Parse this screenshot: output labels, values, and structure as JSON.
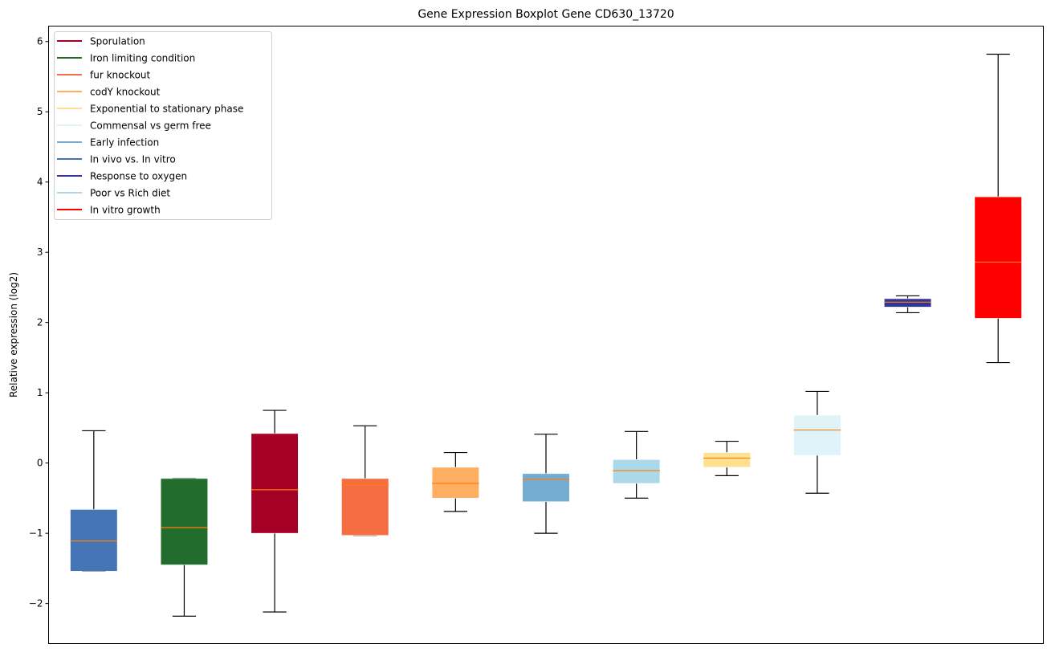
{
  "chart_data": {
    "type": "boxplot",
    "title": "Gene Expression Boxplot Gene CD630_13720",
    "xlabel": "",
    "ylabel": "Relative expression (log2)",
    "ylim": [
      -2.57,
      6.22
    ],
    "yticks": [
      -2,
      -1,
      0,
      1,
      2,
      3,
      4,
      5,
      6
    ],
    "ytick_labels": [
      "−2",
      "−1",
      "0",
      "1",
      "2",
      "3",
      "4",
      "5",
      "6"
    ],
    "grid": false,
    "legend_position": "top-left",
    "median_color": "#ff7f0e",
    "whisker_color": "#000000",
    "boxes": [
      {
        "name": "In vivo vs. In vitro",
        "color": "#4575b4",
        "whislo": -1.54,
        "q1": -1.54,
        "med": -1.11,
        "q3": -0.66,
        "whishi": 0.46
      },
      {
        "name": "Iron limiting condition",
        "color": "#226c2e",
        "whislo": -2.18,
        "q1": -1.45,
        "med": -0.92,
        "q3": -0.22,
        "whishi": -0.22
      },
      {
        "name": "Sporulation",
        "color": "#a50026",
        "whislo": -2.12,
        "q1": -1.0,
        "med": -0.38,
        "q3": 0.42,
        "whishi": 0.75
      },
      {
        "name": "fur knockout",
        "color": "#f46d43",
        "whislo": -1.03,
        "q1": -1.03,
        "med": -0.31,
        "q3": -0.22,
        "whishi": 0.53
      },
      {
        "name": "codY knockout",
        "color": "#fdae61",
        "whislo": -0.69,
        "q1": -0.5,
        "med": -0.29,
        "q3": -0.06,
        "whishi": 0.15
      },
      {
        "name": "Early infection",
        "color": "#74add1",
        "whislo": -1.0,
        "q1": -0.55,
        "med": -0.23,
        "q3": -0.15,
        "whishi": 0.41
      },
      {
        "name": "Poor vs Rich diet",
        "color": "#abd9e9",
        "whislo": -0.5,
        "q1": -0.29,
        "med": -0.11,
        "q3": 0.05,
        "whishi": 0.45
      },
      {
        "name": "Exponential to stationary phase",
        "color": "#fee090",
        "whislo": -0.18,
        "q1": -0.06,
        "med": 0.07,
        "q3": 0.15,
        "whishi": 0.31
      },
      {
        "name": "Commensal vs germ free",
        "color": "#e0f3f8",
        "whislo": -0.43,
        "q1": 0.11,
        "med": 0.47,
        "q3": 0.68,
        "whishi": 1.02
      },
      {
        "name": "Response to oxygen",
        "color": "#313695",
        "whislo": 2.14,
        "q1": 2.22,
        "med": 2.29,
        "q3": 2.34,
        "whishi": 2.38
      },
      {
        "name": "In vitro growth",
        "color": "#ff0000",
        "whislo": 1.43,
        "q1": 2.06,
        "med": 2.86,
        "q3": 3.79,
        "whishi": 5.82
      }
    ],
    "legend": [
      {
        "label": "Sporulation",
        "color": "#a50026"
      },
      {
        "label": "Iron limiting condition",
        "color": "#226c2e"
      },
      {
        "label": "fur knockout",
        "color": "#f46d43"
      },
      {
        "label": "codY knockout",
        "color": "#fdae61"
      },
      {
        "label": "Exponential to stationary phase",
        "color": "#fee090"
      },
      {
        "label": "Commensal vs germ free",
        "color": "#e0f3f8"
      },
      {
        "label": "Early infection",
        "color": "#74add1"
      },
      {
        "label": "In vivo vs. In vitro",
        "color": "#4575b4"
      },
      {
        "label": "Response to oxygen",
        "color": "#313695"
      },
      {
        "label": "Poor vs Rich diet",
        "color": "#abd9e9"
      },
      {
        "label": "In vitro growth",
        "color": "#ff0000"
      }
    ]
  }
}
